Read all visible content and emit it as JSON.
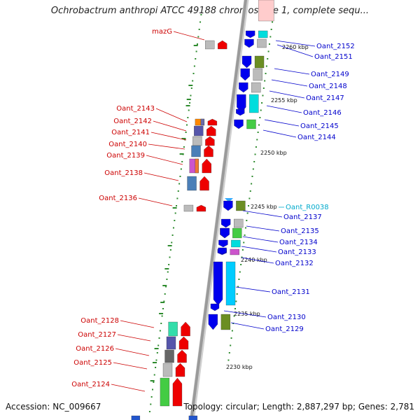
{
  "title": "Ochrobactrum anthropi ATCC 49188 chromosome 1, complete sequ...",
  "footer": {
    "accession": "Accession: NC_009667",
    "summary": "Topology: circular; Length: 2,887,297 bp; Genes: 2,781"
  },
  "colors": {
    "left_label": "#cc0000",
    "right_label": "#0000cc",
    "rna_label": "#00aacc",
    "backbone": "#9a9a9a",
    "tick": "#2e8b2e",
    "gene_left": "#ee0000",
    "gene_right": "#0000ee"
  },
  "kbp_labels": [
    "2260 kbp",
    "2255 kbp",
    "2250 kbp",
    "2245 kbp",
    "2240 kbp",
    "2235 kbp",
    "2230 kbp"
  ],
  "left_genes": [
    "mazG",
    "Oant_2143",
    "Oant_2142",
    "Oant_2141",
    "Oant_2140",
    "Oant_2139",
    "Oant_2138",
    "Oant_2136",
    "Oant_2128",
    "Oant_2127",
    "Oant_2126",
    "Oant_2125",
    "Oant_2124"
  ],
  "right_genes": [
    "Oant_2152",
    "Oant_2151",
    "Oant_2149",
    "Oant_2148",
    "Oant_2147",
    "Oant_2146",
    "Oant_2145",
    "Oant_2144",
    "Oant_R0038",
    "Oant_2137",
    "Oant_2135",
    "Oant_2134",
    "Oant_2133",
    "Oant_2132",
    "Oant_2131",
    "Oant_2130",
    "Oant_2129"
  ]
}
